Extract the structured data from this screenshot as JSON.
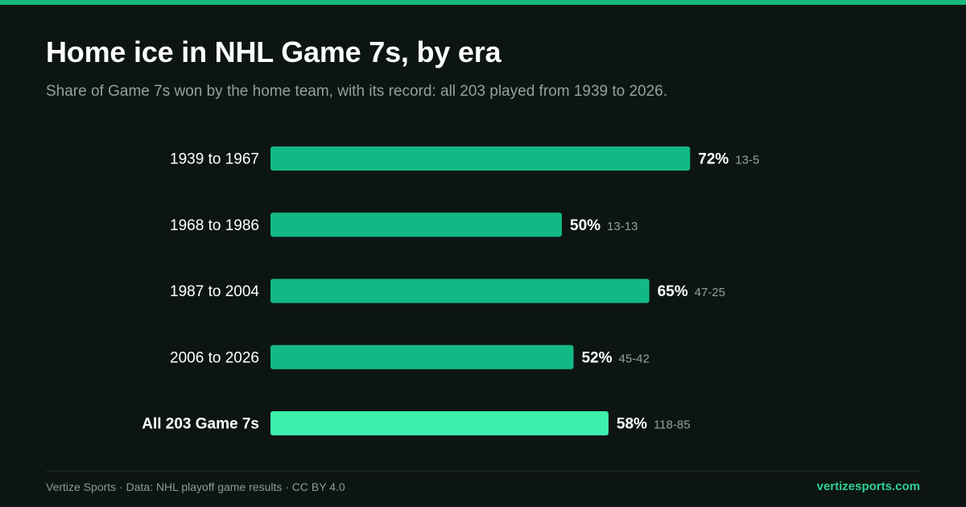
{
  "page": {
    "title": "Home ice in NHL Game 7s, by era",
    "subtitle": "Share of Game 7s won by the home team, with its record: all 203 played from 1939 to 2026.",
    "footer_source": "Vertize Sports · Data: NHL playoff game results · CC BY 4.0",
    "footer_site": "vertizesports.com"
  },
  "colors": {
    "background": "#0d1513",
    "accent": "#18b87d",
    "bar": "#12b985",
    "bar_highlight": "#3df0ad",
    "label": "#ffffff",
    "muted": "#93a19c",
    "site": "#2fd08f"
  },
  "chart_data": {
    "type": "bar",
    "orientation": "horizontal",
    "title": "Home ice in NHL Game 7s, by era",
    "subtitle": "Share of Game 7s won by the home team, with its record: all 203 played from 1939 to 2026.",
    "xlim": [
      0,
      100
    ],
    "grid": false,
    "categories": [
      "1939 to 1967",
      "1968 to 1986",
      "1987 to 2004",
      "2006 to 2026",
      "All 203 Game 7s"
    ],
    "values": [
      72,
      50,
      65,
      52,
      58
    ],
    "value_labels": [
      "72%",
      "50%",
      "65%",
      "52%",
      "58%"
    ],
    "records": [
      "13-5",
      "13-13",
      "47-25",
      "45-42",
      "118-85"
    ],
    "highlight": [
      false,
      false,
      false,
      false,
      true
    ]
  }
}
